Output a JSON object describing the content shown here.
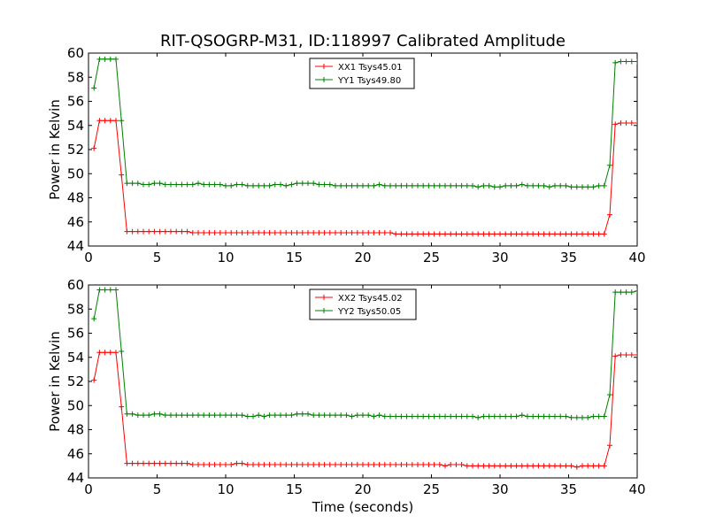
{
  "figure": {
    "title": "RIT-QSOGRP-M31, ID:118997 Calibrated Amplitude",
    "xlabel": "Time (seconds)"
  },
  "chart_data": [
    {
      "type": "line",
      "ylabel": "Power in Kelvin",
      "xlim": [
        0,
        40
      ],
      "ylim": [
        44,
        60
      ],
      "xticks": [
        0,
        5,
        10,
        15,
        20,
        25,
        30,
        35,
        40
      ],
      "yticks": [
        44,
        46,
        48,
        50,
        52,
        54,
        56,
        58,
        60
      ],
      "legend_position": "top-center",
      "series": [
        {
          "name": "XX1 Tsys45.01",
          "color": "#ff0000",
          "x": [
            0.4,
            0.8,
            1.2,
            1.6,
            2.0,
            2.4,
            2.8,
            3.2,
            3.6,
            4.0,
            4.4,
            4.8,
            5.2,
            5.6,
            6.0,
            6.4,
            6.8,
            7.2,
            7.6,
            8.0,
            8.4,
            8.8,
            9.2,
            9.6,
            10.0,
            10.4,
            10.8,
            11.2,
            11.6,
            12.0,
            12.4,
            12.8,
            13.2,
            13.6,
            14.0,
            14.4,
            14.8,
            15.2,
            15.6,
            16.0,
            16.4,
            16.8,
            17.2,
            17.6,
            18.0,
            18.4,
            18.8,
            19.2,
            19.6,
            20.0,
            20.4,
            20.8,
            21.2,
            21.6,
            22.0,
            22.4,
            22.8,
            23.2,
            23.6,
            24.0,
            24.4,
            24.8,
            25.2,
            25.6,
            26.0,
            26.4,
            26.8,
            27.2,
            27.6,
            28.0,
            28.4,
            28.8,
            29.2,
            29.6,
            30.0,
            30.4,
            30.8,
            31.2,
            31.6,
            32.0,
            32.4,
            32.8,
            33.2,
            33.6,
            34.0,
            34.4,
            34.8,
            35.2,
            35.6,
            36.0,
            36.4,
            36.8,
            37.2,
            37.6,
            38.0,
            38.4,
            38.8,
            39.2,
            39.6,
            40.0
          ],
          "y": [
            52.1,
            54.4,
            54.4,
            54.4,
            54.4,
            49.9,
            45.2,
            45.2,
            45.2,
            45.2,
            45.2,
            45.2,
            45.2,
            45.2,
            45.2,
            45.2,
            45.2,
            45.2,
            45.1,
            45.1,
            45.1,
            45.1,
            45.1,
            45.1,
            45.1,
            45.1,
            45.1,
            45.1,
            45.1,
            45.1,
            45.1,
            45.1,
            45.1,
            45.1,
            45.1,
            45.1,
            45.1,
            45.1,
            45.1,
            45.1,
            45.1,
            45.1,
            45.1,
            45.1,
            45.1,
            45.1,
            45.1,
            45.1,
            45.1,
            45.1,
            45.1,
            45.1,
            45.1,
            45.1,
            45.1,
            45.0,
            45.0,
            45.0,
            45.0,
            45.0,
            45.0,
            45.0,
            45.0,
            45.0,
            45.0,
            45.0,
            45.0,
            45.0,
            45.0,
            45.0,
            45.0,
            45.0,
            45.0,
            45.0,
            45.0,
            45.0,
            45.0,
            45.0,
            45.0,
            45.0,
            45.0,
            45.0,
            45.0,
            45.0,
            45.0,
            45.0,
            45.0,
            45.0,
            45.0,
            45.0,
            45.0,
            45.0,
            45.0,
            45.0,
            46.6,
            54.1,
            54.2,
            54.2,
            54.2,
            54.2
          ]
        },
        {
          "name": "YY1 Tsys49.80",
          "color": "#008000",
          "x": [
            0.4,
            0.8,
            1.2,
            1.6,
            2.0,
            2.4,
            2.8,
            3.2,
            3.6,
            4.0,
            4.4,
            4.8,
            5.2,
            5.6,
            6.0,
            6.4,
            6.8,
            7.2,
            7.6,
            8.0,
            8.4,
            8.8,
            9.2,
            9.6,
            10.0,
            10.4,
            10.8,
            11.2,
            11.6,
            12.0,
            12.4,
            12.8,
            13.2,
            13.6,
            14.0,
            14.4,
            14.8,
            15.2,
            15.6,
            16.0,
            16.4,
            16.8,
            17.2,
            17.6,
            18.0,
            18.4,
            18.8,
            19.2,
            19.6,
            20.0,
            20.4,
            20.8,
            21.2,
            21.6,
            22.0,
            22.4,
            22.8,
            23.2,
            23.6,
            24.0,
            24.4,
            24.8,
            25.2,
            25.6,
            26.0,
            26.4,
            26.8,
            27.2,
            27.6,
            28.0,
            28.4,
            28.8,
            29.2,
            29.6,
            30.0,
            30.4,
            30.8,
            31.2,
            31.6,
            32.0,
            32.4,
            32.8,
            33.2,
            33.6,
            34.0,
            34.4,
            34.8,
            35.2,
            35.6,
            36.0,
            36.4,
            36.8,
            37.2,
            37.6,
            38.0,
            38.4,
            38.8,
            39.2,
            39.6,
            40.0
          ],
          "y": [
            57.1,
            59.5,
            59.5,
            59.5,
            59.5,
            54.4,
            49.2,
            49.2,
            49.2,
            49.1,
            49.1,
            49.2,
            49.2,
            49.1,
            49.1,
            49.1,
            49.1,
            49.1,
            49.1,
            49.2,
            49.1,
            49.1,
            49.1,
            49.1,
            49.0,
            49.0,
            49.1,
            49.1,
            49.0,
            49.0,
            49.0,
            49.0,
            49.0,
            49.1,
            49.1,
            49.0,
            49.1,
            49.2,
            49.2,
            49.2,
            49.2,
            49.1,
            49.1,
            49.1,
            49.0,
            49.0,
            49.0,
            49.0,
            49.0,
            49.0,
            49.0,
            49.0,
            49.1,
            49.0,
            49.0,
            49.0,
            49.0,
            49.0,
            49.0,
            49.0,
            49.0,
            49.0,
            49.0,
            49.0,
            49.0,
            49.0,
            49.0,
            49.0,
            49.0,
            49.0,
            48.9,
            49.0,
            49.0,
            48.9,
            48.9,
            49.0,
            49.0,
            49.0,
            49.1,
            49.0,
            49.0,
            49.0,
            49.0,
            48.9,
            49.0,
            49.0,
            49.0,
            48.9,
            48.9,
            48.9,
            48.9,
            48.9,
            49.0,
            49.0,
            50.7,
            59.2,
            59.3,
            59.3,
            59.3,
            59.3
          ]
        }
      ]
    },
    {
      "type": "line",
      "ylabel": "Power in Kelvin",
      "xlabel": "Time (seconds)",
      "xlim": [
        0,
        40
      ],
      "ylim": [
        44,
        60
      ],
      "xticks": [
        0,
        5,
        10,
        15,
        20,
        25,
        30,
        35,
        40
      ],
      "yticks": [
        44,
        46,
        48,
        50,
        52,
        54,
        56,
        58,
        60
      ],
      "legend_position": "top-center",
      "series": [
        {
          "name": "XX2 Tsys45.02",
          "color": "#ff0000",
          "x": [
            0.4,
            0.8,
            1.2,
            1.6,
            2.0,
            2.4,
            2.8,
            3.2,
            3.6,
            4.0,
            4.4,
            4.8,
            5.2,
            5.6,
            6.0,
            6.4,
            6.8,
            7.2,
            7.6,
            8.0,
            8.4,
            8.8,
            9.2,
            9.6,
            10.0,
            10.4,
            10.8,
            11.2,
            11.6,
            12.0,
            12.4,
            12.8,
            13.2,
            13.6,
            14.0,
            14.4,
            14.8,
            15.2,
            15.6,
            16.0,
            16.4,
            16.8,
            17.2,
            17.6,
            18.0,
            18.4,
            18.8,
            19.2,
            19.6,
            20.0,
            20.4,
            20.8,
            21.2,
            21.6,
            22.0,
            22.4,
            22.8,
            23.2,
            23.6,
            24.0,
            24.4,
            24.8,
            25.2,
            25.6,
            26.0,
            26.4,
            26.8,
            27.2,
            27.6,
            28.0,
            28.4,
            28.8,
            29.2,
            29.6,
            30.0,
            30.4,
            30.8,
            31.2,
            31.6,
            32.0,
            32.4,
            32.8,
            33.2,
            33.6,
            34.0,
            34.4,
            34.8,
            35.2,
            35.6,
            36.0,
            36.4,
            36.8,
            37.2,
            37.6,
            38.0,
            38.4,
            38.8,
            39.2,
            39.6,
            40.0
          ],
          "y": [
            52.1,
            54.4,
            54.4,
            54.4,
            54.4,
            49.9,
            45.2,
            45.2,
            45.2,
            45.2,
            45.2,
            45.2,
            45.2,
            45.2,
            45.2,
            45.2,
            45.2,
            45.2,
            45.1,
            45.1,
            45.1,
            45.1,
            45.1,
            45.1,
            45.1,
            45.1,
            45.2,
            45.2,
            45.1,
            45.1,
            45.1,
            45.1,
            45.1,
            45.1,
            45.1,
            45.1,
            45.1,
            45.1,
            45.1,
            45.1,
            45.1,
            45.1,
            45.1,
            45.1,
            45.1,
            45.1,
            45.1,
            45.1,
            45.1,
            45.1,
            45.1,
            45.1,
            45.1,
            45.1,
            45.1,
            45.1,
            45.1,
            45.1,
            45.1,
            45.1,
            45.1,
            45.1,
            45.1,
            45.1,
            45.0,
            45.1,
            45.1,
            45.1,
            45.0,
            45.0,
            45.0,
            45.0,
            45.0,
            45.0,
            45.0,
            45.0,
            45.0,
            45.0,
            45.0,
            45.0,
            45.0,
            45.0,
            45.0,
            45.0,
            45.0,
            45.0,
            45.0,
            45.0,
            44.9,
            45.0,
            45.0,
            45.0,
            45.0,
            45.0,
            46.7,
            54.1,
            54.2,
            54.2,
            54.2,
            54.2
          ]
        },
        {
          "name": "YY2 Tsys50.05",
          "color": "#008000",
          "x": [
            0.4,
            0.8,
            1.2,
            1.6,
            2.0,
            2.4,
            2.8,
            3.2,
            3.6,
            4.0,
            4.4,
            4.8,
            5.2,
            5.6,
            6.0,
            6.4,
            6.8,
            7.2,
            7.6,
            8.0,
            8.4,
            8.8,
            9.2,
            9.6,
            10.0,
            10.4,
            10.8,
            11.2,
            11.6,
            12.0,
            12.4,
            12.8,
            13.2,
            13.6,
            14.0,
            14.4,
            14.8,
            15.2,
            15.6,
            16.0,
            16.4,
            16.8,
            17.2,
            17.6,
            18.0,
            18.4,
            18.8,
            19.2,
            19.6,
            20.0,
            20.4,
            20.8,
            21.2,
            21.6,
            22.0,
            22.4,
            22.8,
            23.2,
            23.6,
            24.0,
            24.4,
            24.8,
            25.2,
            25.6,
            26.0,
            26.4,
            26.8,
            27.2,
            27.6,
            28.0,
            28.4,
            28.8,
            29.2,
            29.6,
            30.0,
            30.4,
            30.8,
            31.2,
            31.6,
            32.0,
            32.4,
            32.8,
            33.2,
            33.6,
            34.0,
            34.4,
            34.8,
            35.2,
            35.6,
            36.0,
            36.4,
            36.8,
            37.2,
            37.6,
            38.0,
            38.4,
            38.8,
            39.2,
            39.6,
            40.0
          ],
          "y": [
            57.2,
            59.6,
            59.6,
            59.6,
            59.6,
            54.5,
            49.3,
            49.3,
            49.2,
            49.2,
            49.2,
            49.3,
            49.3,
            49.2,
            49.2,
            49.2,
            49.2,
            49.2,
            49.2,
            49.2,
            49.2,
            49.2,
            49.2,
            49.2,
            49.2,
            49.2,
            49.2,
            49.2,
            49.1,
            49.1,
            49.2,
            49.1,
            49.2,
            49.2,
            49.2,
            49.2,
            49.2,
            49.3,
            49.3,
            49.3,
            49.2,
            49.2,
            49.2,
            49.2,
            49.2,
            49.2,
            49.2,
            49.1,
            49.2,
            49.2,
            49.2,
            49.1,
            49.2,
            49.1,
            49.1,
            49.1,
            49.1,
            49.1,
            49.1,
            49.1,
            49.1,
            49.1,
            49.1,
            49.1,
            49.1,
            49.1,
            49.1,
            49.1,
            49.1,
            49.1,
            49.0,
            49.1,
            49.1,
            49.1,
            49.1,
            49.1,
            49.1,
            49.1,
            49.2,
            49.1,
            49.1,
            49.1,
            49.1,
            49.1,
            49.1,
            49.1,
            49.1,
            49.0,
            49.0,
            49.0,
            49.0,
            49.1,
            49.1,
            49.1,
            50.9,
            59.4,
            59.4,
            59.4,
            59.4,
            59.5
          ]
        }
      ]
    }
  ]
}
